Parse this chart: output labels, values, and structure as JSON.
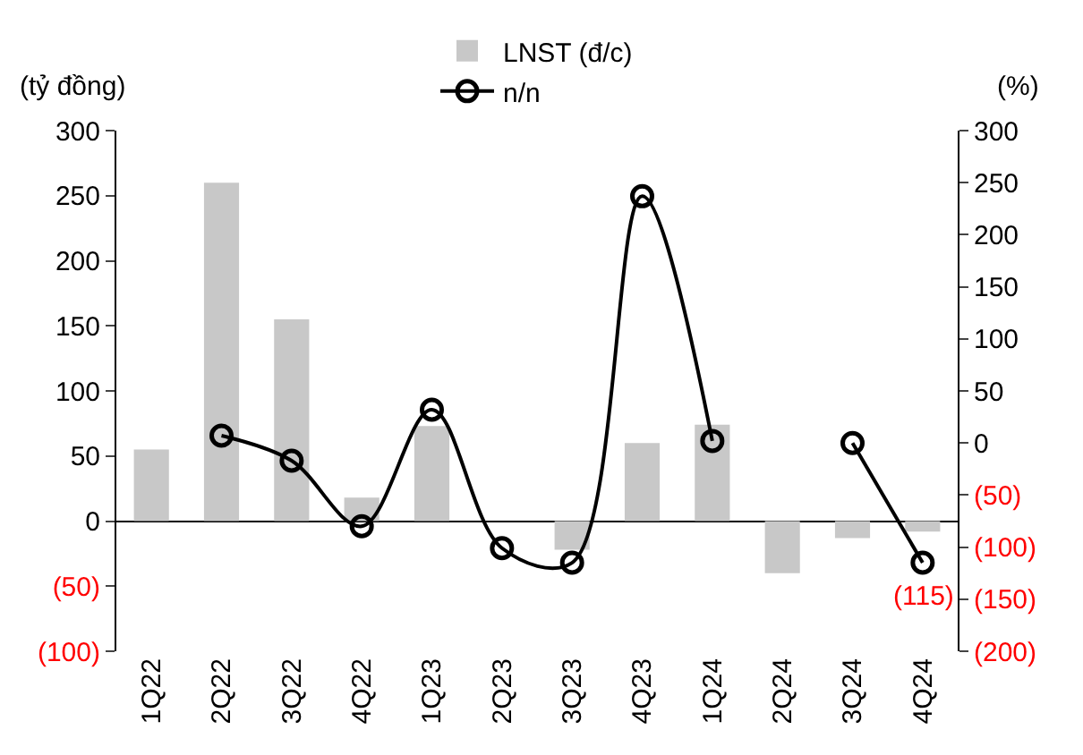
{
  "chart_data": {
    "type": "bar",
    "categories": [
      "1Q22",
      "2Q22",
      "3Q22",
      "4Q22",
      "1Q23",
      "2Q23",
      "3Q23",
      "4Q23",
      "1Q24",
      "2Q24",
      "3Q24",
      "4Q24"
    ],
    "series": [
      {
        "name": "LNST (đ/c)",
        "color": "#c8c8c8",
        "values": [
          55,
          260,
          155,
          18,
          73,
          0,
          -22,
          60,
          74,
          -40,
          -13,
          -8
        ]
      },
      {
        "name": "n/n",
        "type": "line",
        "axis": "y2",
        "color": "#000000",
        "values": [
          null,
          7,
          -17,
          -80,
          32,
          -101,
          -115,
          237,
          2,
          null,
          0,
          -115
        ]
      }
    ],
    "ylabel": "(tỷ đồng)",
    "y2label": "(%)",
    "ylim": [
      -100,
      300
    ],
    "yticks": [
      {
        "value": -100,
        "label": "(100)"
      },
      {
        "value": -50,
        "label": "(50)"
      },
      0,
      50,
      100,
      150,
      200,
      250,
      300
    ],
    "y2lim": [
      -200,
      300
    ],
    "y2ticks": [
      {
        "value": -200,
        "label": "(200)"
      },
      {
        "value": -150,
        "label": "(150)"
      },
      {
        "value": -100,
        "label": "(100)"
      },
      {
        "value": -50,
        "label": "(50)"
      },
      0,
      50,
      100,
      150,
      200,
      250,
      300
    ],
    "annotations": [
      "(115)"
    ],
    "marker": "circle",
    "line_style": "solid",
    "legend": "top"
  }
}
